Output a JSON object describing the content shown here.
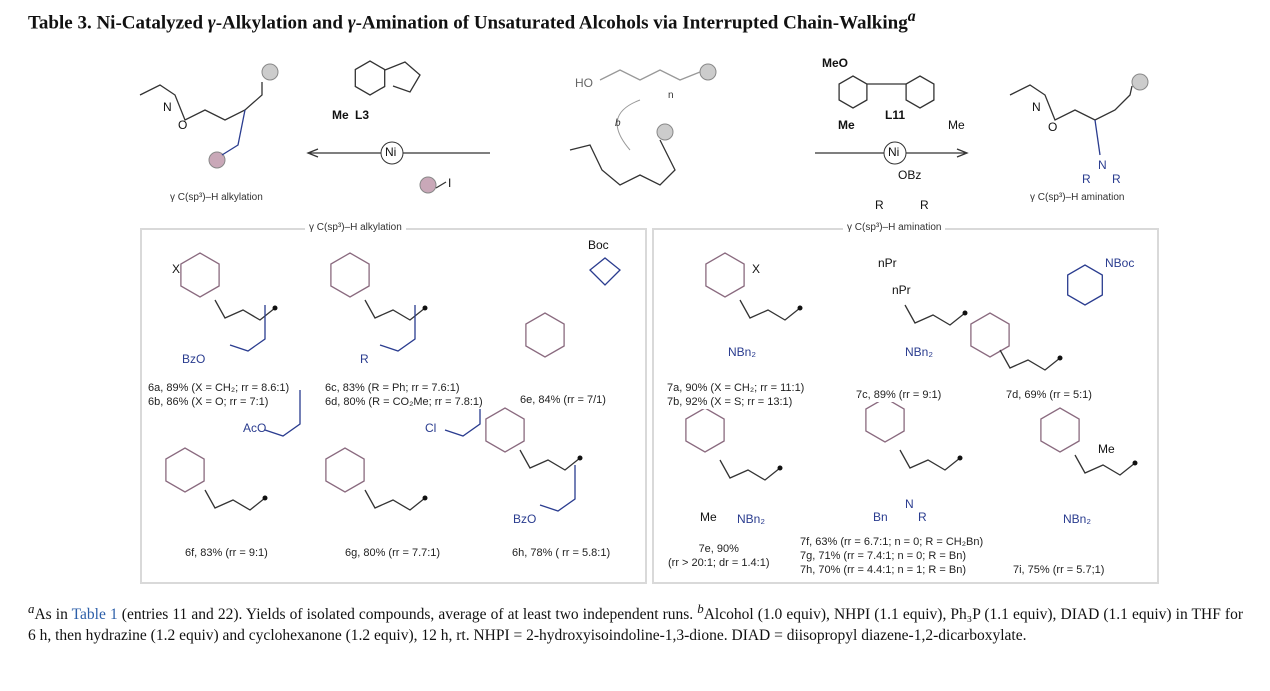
{
  "title": {
    "prefix": "Table 3. Ni-Catalyzed ",
    "g1": "γ",
    "mid1": "-Alkylation and ",
    "g2": "γ",
    "mid2": "-Amination of Unsaturated Alcohols via Interrupted Chain-Walking",
    "sup": "a"
  },
  "scheme": {
    "left_label": "γ C(sp³)–H alkylation",
    "right_label": "γ C(sp³)–H amination",
    "ligand_left": "L3",
    "ligand_right": "L11",
    "ni": "Ni",
    "me": "Me",
    "meo": "MeO",
    "obz": "OBz",
    "ho": "HO",
    "n": "n",
    "b": "b",
    "i": "I",
    "r": "R",
    "nitrogen": "N",
    "oxygen": "O",
    "gamma": "γ"
  },
  "sections": {
    "alkylation": "γ C(sp³)–H alkylation",
    "amination": "γ C(sp³)–H amination"
  },
  "structure_labels": {
    "x": "X",
    "bzo": "BzO",
    "r": "R",
    "boc": "Boc",
    "aco": "AcO",
    "cl": "Cl",
    "nbn2": "NBn₂",
    "npr": "nPr",
    "nboc": "NBoc",
    "me": "Me",
    "bn": "Bn",
    "n": "N",
    "o": "O"
  },
  "compounds": [
    {
      "lines": [
        "6a, 89% (X = CH₂;  rr = 8.6:1)",
        "6b, 86% (X = O; rr = 7:1)"
      ]
    },
    {
      "lines": [
        "6c, 83% (R = Ph;  rr = 7.6:1)",
        "6d, 80% (R = CO₂Me; rr = 7.8:1)"
      ]
    },
    {
      "lines": [
        "6e, 84% (rr = 7/1)"
      ]
    },
    {
      "lines": [
        "6f, 83% (rr = 9:1)"
      ]
    },
    {
      "lines": [
        "6g, 80% (rr = 7.7:1)"
      ]
    },
    {
      "lines": [
        "6h, 78% ( rr = 5.8:1)"
      ]
    },
    {
      "lines": [
        "7a, 90% (X = CH₂;  rr = 11:1)",
        "7b, 92% (X = S; rr = 13:1)"
      ]
    },
    {
      "lines": [
        "7c, 89% (rr = 9:1)"
      ]
    },
    {
      "lines": [
        "7d, 69% (rr = 5:1)"
      ]
    },
    {
      "lines": [
        "7e, 90%",
        "(rr > 20:1; dr = 1.4:1)"
      ]
    },
    {
      "lines": [
        "7f, 63% (rr = 6.7:1; n = 0; R = CH₂Bn)",
        "7g, 71% (rr = 7.4:1; n = 0; R = Bn)",
        "7h, 70% (rr = 4.4:1; n = 1; R = Bn)"
      ]
    },
    {
      "lines": [
        "7i, 75% (rr = 5.7;1)"
      ]
    }
  ],
  "footnote": {
    "a": "a",
    "p1": "As in ",
    "link": "Table 1",
    "p2": " (entries 11 and 22). Yields of isolated compounds, average of at least two independent runs. ",
    "b": "b",
    "p3": "Alcohol (1.0 equiv), NHPI (1.1 equiv), Ph₃P (1.1 equiv), DIAD (1.1 equiv) in THF for 6 h, then hydrazine (1.2 equiv) and cyclohexanone (1.2 equiv), 12 h, rt. NHPI = 2-hydroxyisoindoline-1,3-dione. DIAD = diisopropyl diazene-1,2-dicarboxylate."
  },
  "colors": {
    "ring": "#8a6a7f",
    "blue": "#2a3c8f",
    "box": "#d9d9d9",
    "link": "#2b5ea8"
  }
}
